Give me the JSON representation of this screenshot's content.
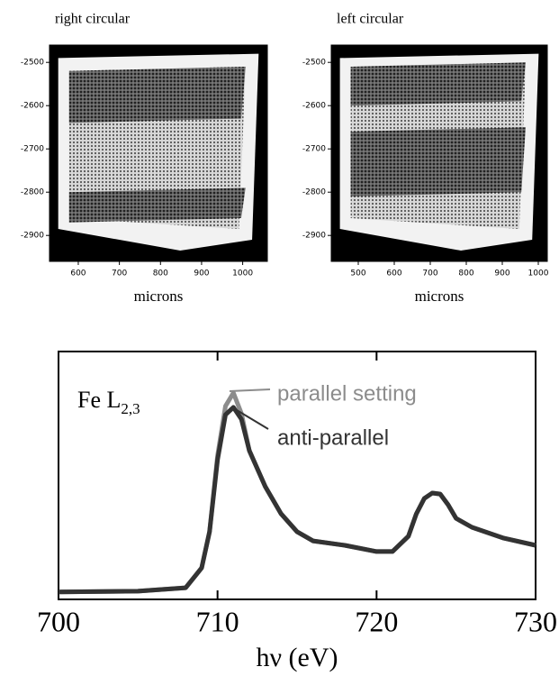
{
  "chart_data": [
    {
      "type": "image",
      "title": "right circular",
      "xlabel": "microns",
      "xlim": [
        530,
        1060
      ],
      "xticks": [
        600,
        700,
        800,
        900,
        1000
      ],
      "ylim": [
        -2960,
        -2460
      ],
      "yticks": [
        -2500,
        -2600,
        -2700,
        -2800,
        -2900
      ]
    },
    {
      "type": "image",
      "title": "left circular",
      "xlabel": "microns",
      "xlim": [
        425,
        1025
      ],
      "xticks": [
        500,
        600,
        700,
        800,
        900,
        1000
      ],
      "ylim": [
        -2960,
        -2460
      ],
      "yticks": [
        -2500,
        -2600,
        -2700,
        -2800,
        -2900
      ]
    },
    {
      "type": "line",
      "annotation": "Fe L",
      "annotation_sub": "2,3",
      "xlabel": "hν (eV)",
      "xlim": [
        700,
        730
      ],
      "xticks": [
        700,
        710,
        720,
        730
      ],
      "ylim": [
        0,
        1
      ],
      "x": [
        700,
        705,
        708,
        709,
        709.5,
        710,
        710.5,
        711,
        711.5,
        712,
        713,
        714,
        715,
        716,
        718,
        720,
        721,
        722,
        722.5,
        723,
        723.5,
        724,
        724.5,
        725,
        726,
        728,
        730
      ],
      "series": [
        {
          "name": "parallel setting",
          "color": "#8c8c8c",
          "values": [
            0.03,
            0.033,
            0.047,
            0.127,
            0.273,
            0.58,
            0.78,
            0.833,
            0.75,
            0.6,
            0.455,
            0.345,
            0.273,
            0.236,
            0.218,
            0.193,
            0.193,
            0.255,
            0.345,
            0.407,
            0.429,
            0.425,
            0.382,
            0.327,
            0.291,
            0.247,
            0.218
          ]
        },
        {
          "name": "anti-parallel",
          "color": "#333333",
          "values": [
            0.03,
            0.033,
            0.047,
            0.127,
            0.273,
            0.564,
            0.745,
            0.775,
            0.727,
            0.6,
            0.455,
            0.345,
            0.273,
            0.236,
            0.218,
            0.193,
            0.193,
            0.255,
            0.345,
            0.407,
            0.429,
            0.425,
            0.382,
            0.327,
            0.291,
            0.247,
            0.218
          ]
        }
      ]
    }
  ]
}
